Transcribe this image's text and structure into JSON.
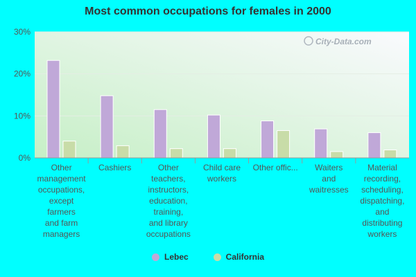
{
  "chart_data": {
    "type": "bar",
    "title": "Most common occupations for females in 2000",
    "categories": [
      [
        "Other",
        "management",
        "occupations,",
        "except",
        "farmers",
        "and farm",
        "managers"
      ],
      [
        "Cashiers"
      ],
      [
        "Other",
        "teachers,",
        "instructors,",
        "education,",
        "training,",
        "and library",
        "occupations"
      ],
      [
        "Child care",
        "workers"
      ],
      [
        "Other offic..."
      ],
      [
        "Waiters",
        "and",
        "waitresses"
      ],
      [
        "Material",
        "recording,",
        "scheduling,",
        "dispatching,",
        "and",
        "distributing",
        "workers"
      ]
    ],
    "series": [
      {
        "name": "Lebec",
        "color": "#c0a8d8",
        "values": [
          23.2,
          14.8,
          11.5,
          10.2,
          8.8,
          6.9,
          6.0
        ]
      },
      {
        "name": "California",
        "color": "#c8dca8",
        "values": [
          4.0,
          2.9,
          2.2,
          2.2,
          6.5,
          1.5,
          1.9
        ]
      }
    ],
    "ylim": [
      0,
      30
    ],
    "yticks": [
      {
        "value": 0,
        "label": "0%"
      },
      {
        "value": 10,
        "label": "10%"
      },
      {
        "value": 20,
        "label": "20%"
      },
      {
        "value": 30,
        "label": "30%"
      }
    ],
    "watermark": "City-Data.com",
    "legend_position": "bottom-center",
    "grid": true
  }
}
